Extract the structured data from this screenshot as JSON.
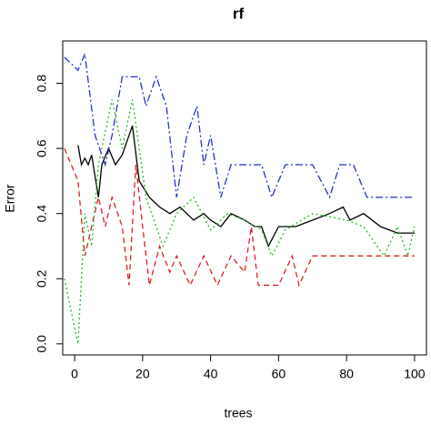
{
  "chart_data": {
    "type": "line",
    "title": "rf",
    "x_label": "trees",
    "y_label": "Error",
    "xlim": [
      -3.5,
      103.5
    ],
    "ylim": [
      -0.034,
      0.93
    ],
    "xticks": [
      0,
      20,
      40,
      60,
      80,
      100
    ],
    "yticks": [
      {
        "value": 0,
        "label": "0.0"
      },
      0.2,
      0.4,
      0.6,
      0.8
    ],
    "series": [
      {
        "color": "#000000",
        "dash": "none",
        "x": [
          1,
          2,
          3,
          4,
          5,
          7,
          8,
          10,
          12,
          14,
          17,
          19,
          22,
          25,
          28,
          31,
          35,
          38,
          40,
          43,
          46,
          50,
          53,
          55,
          57,
          60,
          65,
          70,
          75,
          79,
          81,
          85,
          90,
          95,
          100
        ],
        "values": [
          0.61,
          0.55,
          0.57,
          0.55,
          0.58,
          0.45,
          0.55,
          0.6,
          0.55,
          0.58,
          0.67,
          0.5,
          0.45,
          0.42,
          0.4,
          0.42,
          0.38,
          0.4,
          0.38,
          0.36,
          0.4,
          0.38,
          0.36,
          0.36,
          0.3,
          0.36,
          0.36,
          0.38,
          0.4,
          0.42,
          0.38,
          0.4,
          0.36,
          0.34,
          0.34
        ]
      },
      {
        "color": "#df2020",
        "dash": "6 4",
        "x": [
          -3,
          1,
          3,
          5,
          7,
          9,
          11,
          14,
          16,
          18,
          20,
          22,
          25,
          28,
          30,
          34,
          38,
          42,
          46,
          50,
          52,
          54,
          60,
          64,
          66,
          70,
          75,
          80,
          85,
          100
        ],
        "values": [
          0.6,
          0.5,
          0.27,
          0.36,
          0.45,
          0.36,
          0.45,
          0.36,
          0.18,
          0.55,
          0.36,
          0.18,
          0.3,
          0.22,
          0.27,
          0.18,
          0.27,
          0.18,
          0.27,
          0.22,
          0.36,
          0.18,
          0.18,
          0.27,
          0.18,
          0.27,
          0.27,
          0.27,
          0.27,
          0.27
        ]
      },
      {
        "color": "#22bb22",
        "dash": "2 3",
        "x": [
          -3,
          1,
          3,
          5,
          7,
          11,
          14,
          17,
          21,
          26,
          30,
          35,
          40,
          45,
          50,
          55,
          58,
          62,
          70,
          80,
          85,
          91,
          95,
          98,
          100
        ],
        "values": [
          0.2,
          0.0,
          0.4,
          0.3,
          0.55,
          0.75,
          0.6,
          0.75,
          0.45,
          0.3,
          0.4,
          0.45,
          0.35,
          0.4,
          0.38,
          0.35,
          0.27,
          0.35,
          0.4,
          0.38,
          0.36,
          0.27,
          0.36,
          0.27,
          0.36
        ]
      },
      {
        "color": "#2233cc",
        "dash": "8 3 2 3",
        "x": [
          -3,
          1,
          3,
          6,
          9,
          11,
          14,
          19,
          21,
          24,
          27,
          30,
          33,
          36,
          38,
          40,
          43,
          46,
          50,
          55,
          58,
          62,
          70,
          75,
          78,
          82,
          86,
          100
        ],
        "values": [
          0.88,
          0.84,
          0.89,
          0.64,
          0.55,
          0.64,
          0.82,
          0.82,
          0.73,
          0.82,
          0.73,
          0.45,
          0.64,
          0.73,
          0.55,
          0.64,
          0.45,
          0.55,
          0.55,
          0.55,
          0.45,
          0.55,
          0.55,
          0.45,
          0.55,
          0.55,
          0.45,
          0.45
        ]
      }
    ]
  }
}
